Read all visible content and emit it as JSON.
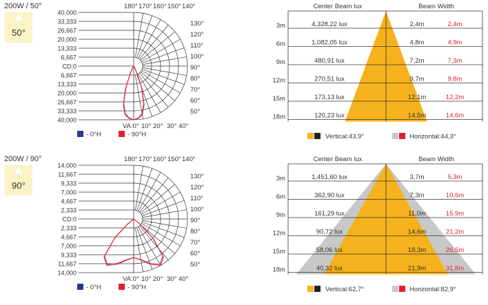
{
  "panels": [
    {
      "model": "200W / 50°",
      "badge": "50°",
      "polar": {
        "left_ticks": [
          "40,000",
          "33,333",
          "26,667",
          "20,000",
          "13,333",
          "6,667",
          "CD:0",
          "6,667",
          "13,333",
          "20,000",
          "26,667",
          "33,333",
          "40,000"
        ],
        "top_angles": [
          "180°",
          "170°",
          "160°",
          "150°",
          "140°"
        ],
        "right_angles": [
          "130°",
          "120°",
          "110°",
          "100°",
          "90°",
          "80°",
          "70°",
          "60°",
          "50°"
        ],
        "bottom_axis": [
          "VA:0°",
          "10°",
          "20°",
          "30°",
          "40°"
        ],
        "legend": [
          {
            "label": "- 0°H",
            "color": "#2b3990"
          },
          {
            "label": "- 90°H",
            "color": "#e0202b"
          }
        ],
        "curves": {
          "c0": {
            "color": "#b5488c",
            "points": [
              [
                0,
                1
              ],
              [
                5,
                0.98
              ],
              [
                10,
                0.92
              ],
              [
                15,
                0.75
              ],
              [
                20,
                0.45
              ],
              [
                25,
                0.15
              ],
              [
                30,
                0.03
              ],
              [
                35,
                0
              ]
            ]
          },
          "c90": {
            "color": "#e0202b",
            "points": [
              [
                0,
                1
              ],
              [
                5,
                0.97
              ],
              [
                10,
                0.9
              ],
              [
                15,
                0.72
              ],
              [
                20,
                0.42
              ],
              [
                25,
                0.14
              ],
              [
                30,
                0.03
              ],
              [
                35,
                0
              ]
            ]
          }
        }
      },
      "beam": {
        "header_lux": "Center Beam lux",
        "header_width": "Beam Width",
        "rows": [
          {
            "dist": "3m",
            "lux": "4,328,22 lux",
            "v": "2,4m",
            "h": "2,4m"
          },
          {
            "dist": "6m",
            "lux": "1,082,05 lux",
            "v": "4,8m",
            "h": "4,9m"
          },
          {
            "dist": "9m",
            "lux": "480,91 lux",
            "v": "7,2m",
            "h": "7,3m"
          },
          {
            "dist": "12m",
            "lux": "270,51 lux",
            "v": "9,7m",
            "h": "9,8m"
          },
          {
            "dist": "15m",
            "lux": "173,13 lux",
            "v": "12,1m",
            "h": "12,2m"
          },
          {
            "dist": "18m",
            "lux": "120,23 lux",
            "v": "14,5m",
            "h": "14,6m"
          }
        ],
        "v_label": "Vertical:43,9°",
        "h_label": "Horizontal:44,3°",
        "v_angle": 43.9,
        "h_angle": 44.3
      }
    },
    {
      "model": "200W / 90°",
      "badge": "90°",
      "polar": {
        "left_ticks": [
          "14,000",
          "11,667",
          "9,333",
          "7,000",
          "4,667",
          "2,333",
          "CD:0",
          "2,333",
          "4,667",
          "7,000",
          "9,333",
          "11,667",
          "14,000"
        ],
        "top_angles": [
          "180°",
          "170°",
          "160°",
          "150°",
          "140°"
        ],
        "right_angles": [
          "130°",
          "120°",
          "110°",
          "100°",
          "90°",
          "80°",
          "70°",
          "60°",
          "50°"
        ],
        "bottom_axis": [
          "VA:0°",
          "10°",
          "20°",
          "30°",
          "40°"
        ],
        "legend": [
          {
            "label": "- 0°H",
            "color": "#2b3990"
          },
          {
            "label": "- 90°H",
            "color": "#e0202b"
          }
        ],
        "curves": {
          "c0": {
            "color": "#b5488c",
            "points": [
              [
                0,
                0.72
              ],
              [
                10,
                0.78
              ],
              [
                20,
                0.9
              ],
              [
                30,
                1
              ],
              [
                38,
                0.9
              ],
              [
                45,
                0.5
              ],
              [
                50,
                0.15
              ],
              [
                55,
                0
              ]
            ]
          },
          "c90": {
            "color": "#e0202b",
            "points": [
              [
                0,
                0.72
              ],
              [
                10,
                0.77
              ],
              [
                20,
                0.88
              ],
              [
                30,
                0.98
              ],
              [
                38,
                0.88
              ],
              [
                45,
                0.5
              ],
              [
                50,
                0.15
              ],
              [
                55,
                0
              ]
            ]
          }
        }
      },
      "beam": {
        "header_lux": "Center Beam lux",
        "header_width": "Beam Width",
        "rows": [
          {
            "dist": "3m",
            "lux": "1,451,60 lux",
            "v": "3,7m",
            "h": "5,3m"
          },
          {
            "dist": "6m",
            "lux": "362,90 lux",
            "v": "7,3m",
            "h": "10,6m"
          },
          {
            "dist": "9m",
            "lux": "161,29 lux",
            "v": "11,0m",
            "h": "15,9m"
          },
          {
            "dist": "12m",
            "lux": "90,72 lux",
            "v": "14,6m",
            "h": "21,2m"
          },
          {
            "dist": "15m",
            "lux": "58,06 lux",
            "v": "18,3m",
            "h": "26,5m"
          },
          {
            "dist": "18m",
            "lux": "40,32 lux",
            "v": "21,9m",
            "h": "31,8m"
          }
        ],
        "v_label": "Vertical:62,7°",
        "h_label": "Horizontal:82,9°",
        "v_angle": 62.7,
        "h_angle": 82.9
      }
    }
  ],
  "colors": {
    "beam_v": "#f5b21d",
    "beam_h": "#c8c8c8",
    "swatch_v_dark": "#222",
    "swatch_h_red": "#e0202b",
    "badge_bg": "#fbf2c6",
    "grid": "#333",
    "red_text": "#e0202b"
  }
}
